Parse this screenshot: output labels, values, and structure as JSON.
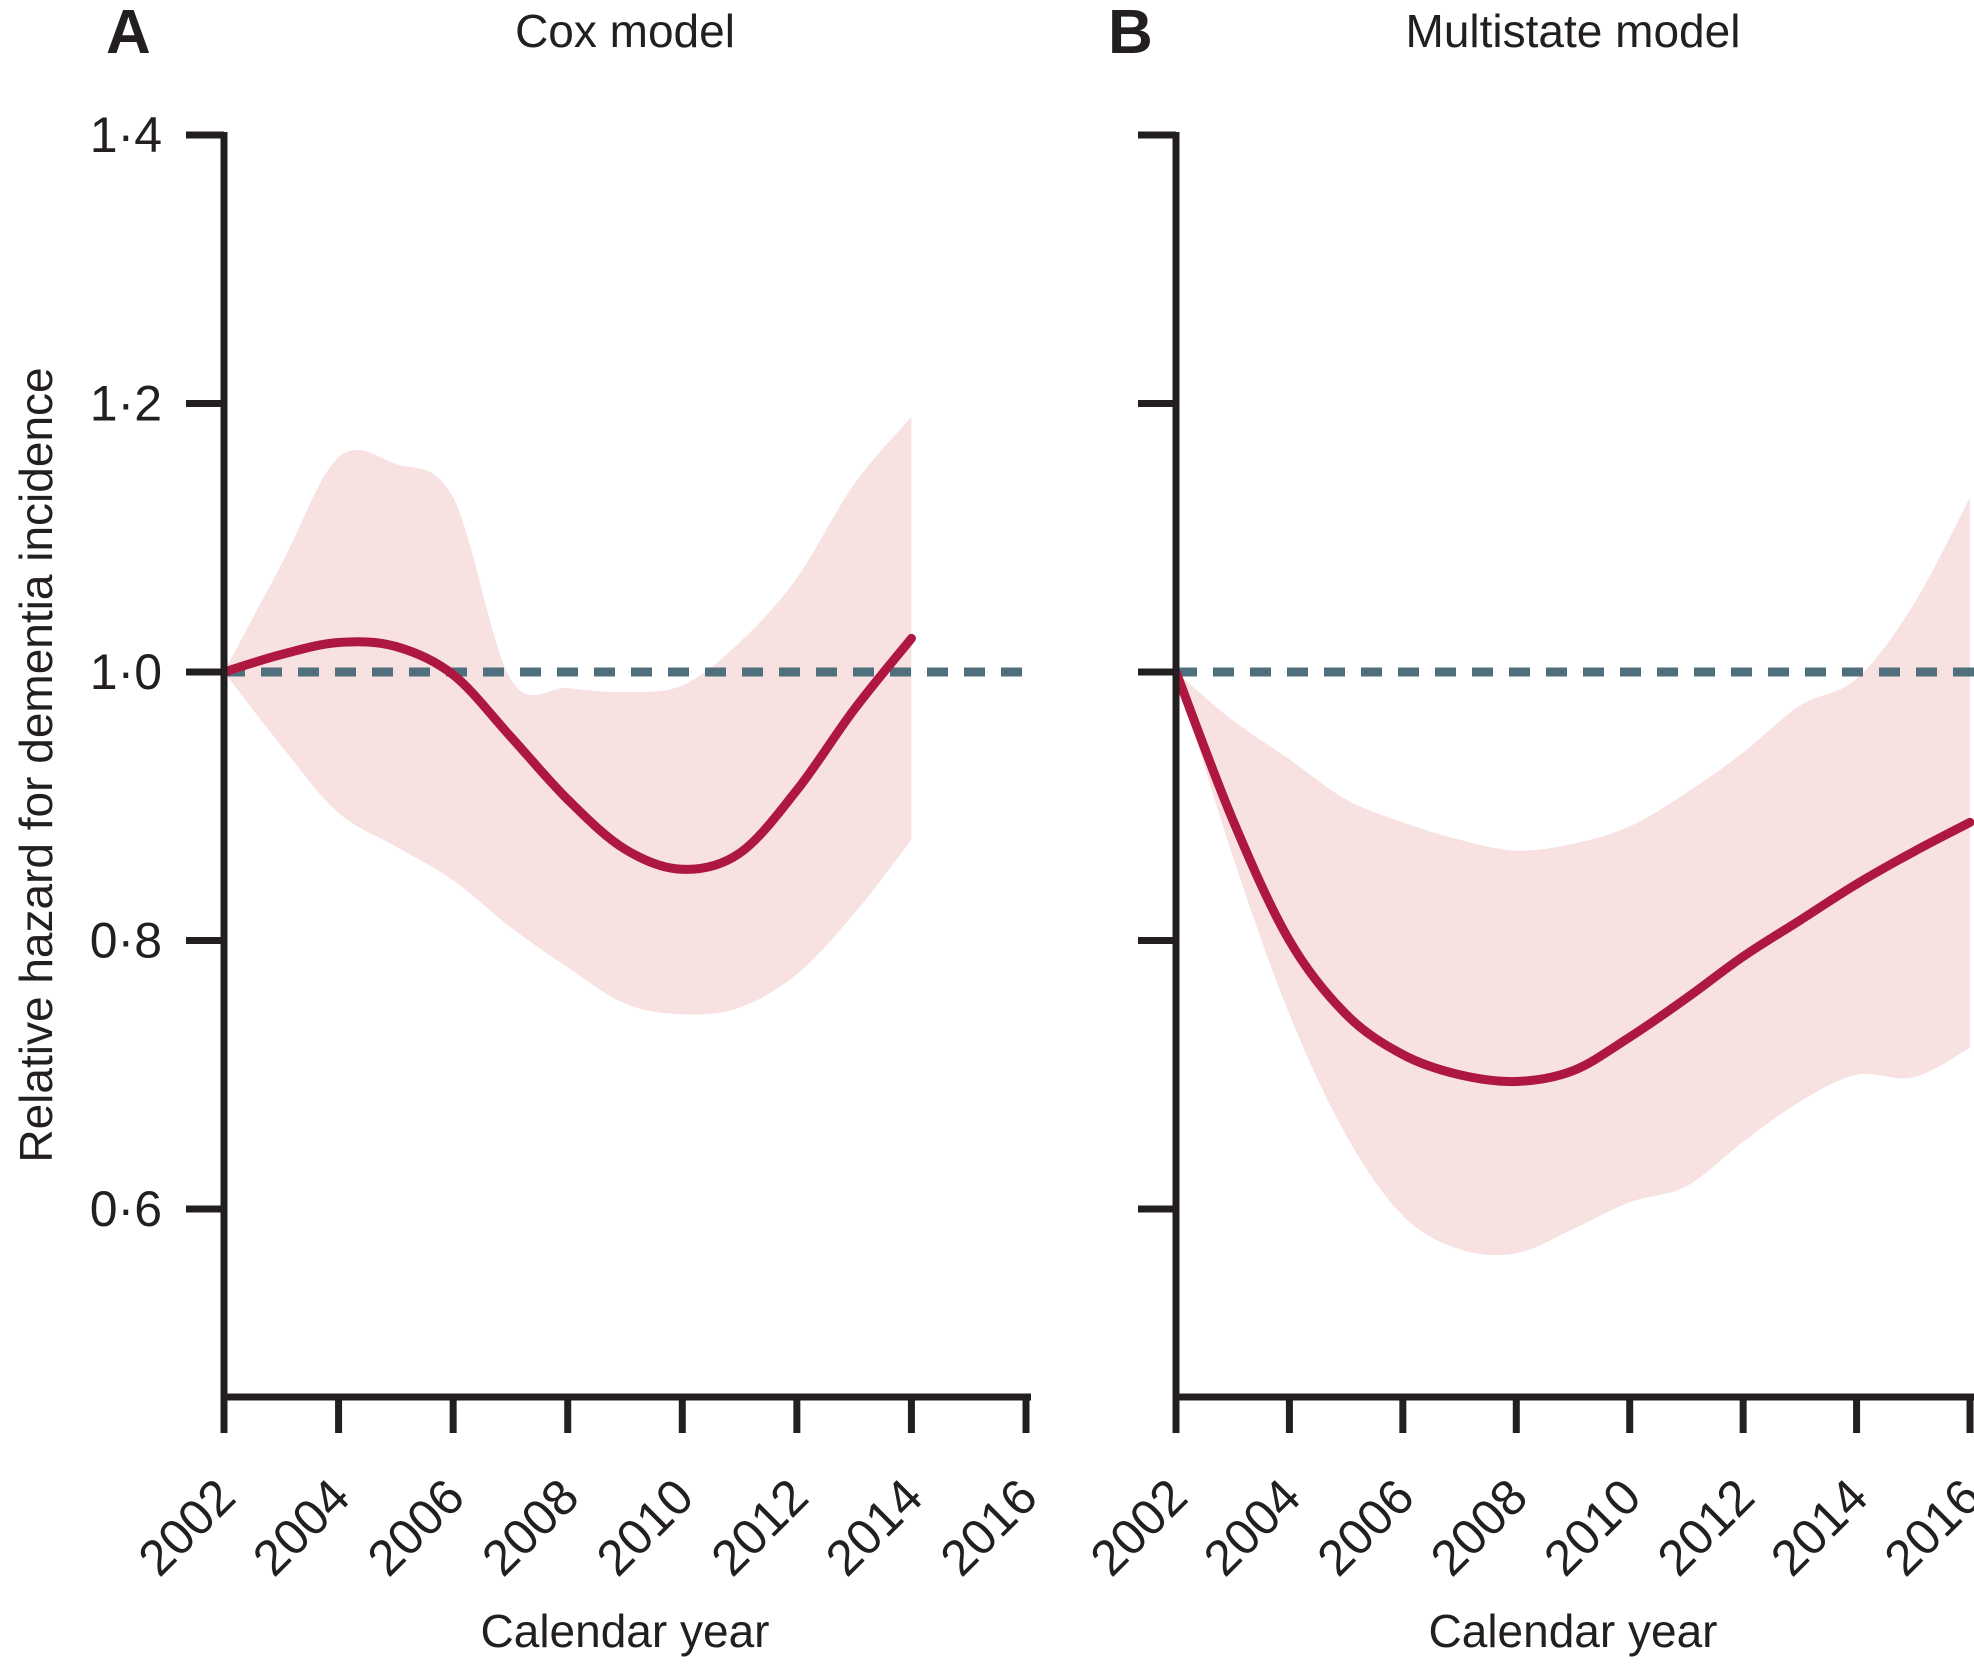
{
  "figure": {
    "panel_a": {
      "label": "A",
      "title": "Cox model"
    },
    "panel_b": {
      "label": "B",
      "title": "Multistate model"
    },
    "y_axis": {
      "label": "Relative hazard for dementia incidence",
      "ticks": [
        "1·4",
        "1·2",
        "1·0",
        "0·8",
        "0·6"
      ],
      "tick_values": [
        1.4,
        1.2,
        1.0,
        0.8,
        0.6
      ]
    },
    "x_axis": {
      "label": "Calendar year",
      "ticks": [
        "2002",
        "2004",
        "2006",
        "2008",
        "2010",
        "2012",
        "2014",
        "2016"
      ],
      "tick_values": [
        2002,
        2004,
        2006,
        2008,
        2010,
        2012,
        2014,
        2016
      ]
    },
    "reference_line": {
      "value": 1.0,
      "style": "dashed"
    }
  },
  "chart_data": [
    {
      "type": "line",
      "panel": "A",
      "title": "Cox model",
      "xlabel": "Calendar year",
      "ylabel": "Relative hazard for dementia incidence",
      "xlim": [
        2002,
        2016
      ],
      "ylim": [
        0.46,
        1.42
      ],
      "reference_y": 1.0,
      "grid": false,
      "legend": "none",
      "x": [
        2002,
        2003,
        2004,
        2005,
        2006,
        2007,
        2008,
        2009,
        2010,
        2011,
        2012,
        2013,
        2014
      ],
      "series": [
        {
          "name": "relative_hazard",
          "values": [
            1.0,
            1.013,
            1.022,
            1.019,
            0.998,
            0.952,
            0.905,
            0.868,
            0.853,
            0.865,
            0.912,
            0.972,
            1.025
          ]
        },
        {
          "name": "ci_upper",
          "values": [
            1.0,
            1.08,
            1.16,
            1.155,
            1.13,
            0.995,
            0.988,
            0.985,
            0.99,
            1.022,
            1.07,
            1.14,
            1.19
          ]
        },
        {
          "name": "ci_lower",
          "values": [
            1.0,
            0.945,
            0.895,
            0.87,
            0.845,
            0.81,
            0.78,
            0.753,
            0.745,
            0.75,
            0.775,
            0.82,
            0.875
          ]
        }
      ]
    },
    {
      "type": "line",
      "panel": "B",
      "title": "Multistate model",
      "xlabel": "Calendar year",
      "ylabel": "Relative hazard for dementia incidence",
      "xlim": [
        2002,
        2016
      ],
      "ylim": [
        0.46,
        1.42
      ],
      "reference_y": 1.0,
      "grid": false,
      "legend": "none",
      "x": [
        2002,
        2003,
        2004,
        2005,
        2006,
        2007,
        2008,
        2009,
        2010,
        2011,
        2012,
        2013,
        2014,
        2015,
        2016
      ],
      "series": [
        {
          "name": "relative_hazard",
          "values": [
            1.0,
            0.89,
            0.8,
            0.745,
            0.715,
            0.7,
            0.695,
            0.703,
            0.728,
            0.757,
            0.788,
            0.815,
            0.842,
            0.866,
            0.888
          ]
        },
        {
          "name": "ci_upper",
          "values": [
            1.0,
            0.964,
            0.935,
            0.905,
            0.888,
            0.875,
            0.867,
            0.872,
            0.885,
            0.91,
            0.94,
            0.975,
            0.995,
            1.05,
            1.13
          ]
        },
        {
          "name": "ci_lower",
          "values": [
            1.0,
            0.863,
            0.745,
            0.655,
            0.595,
            0.57,
            0.567,
            0.585,
            0.605,
            0.617,
            0.65,
            0.68,
            0.7,
            0.698,
            0.72
          ]
        }
      ]
    }
  ],
  "colors": {
    "line": "#ae1740",
    "band": "#f7e1e1",
    "reference_dash": "#4f6f7d",
    "axis": "#231f20",
    "text": "#231f20",
    "background": "#ffffff"
  }
}
